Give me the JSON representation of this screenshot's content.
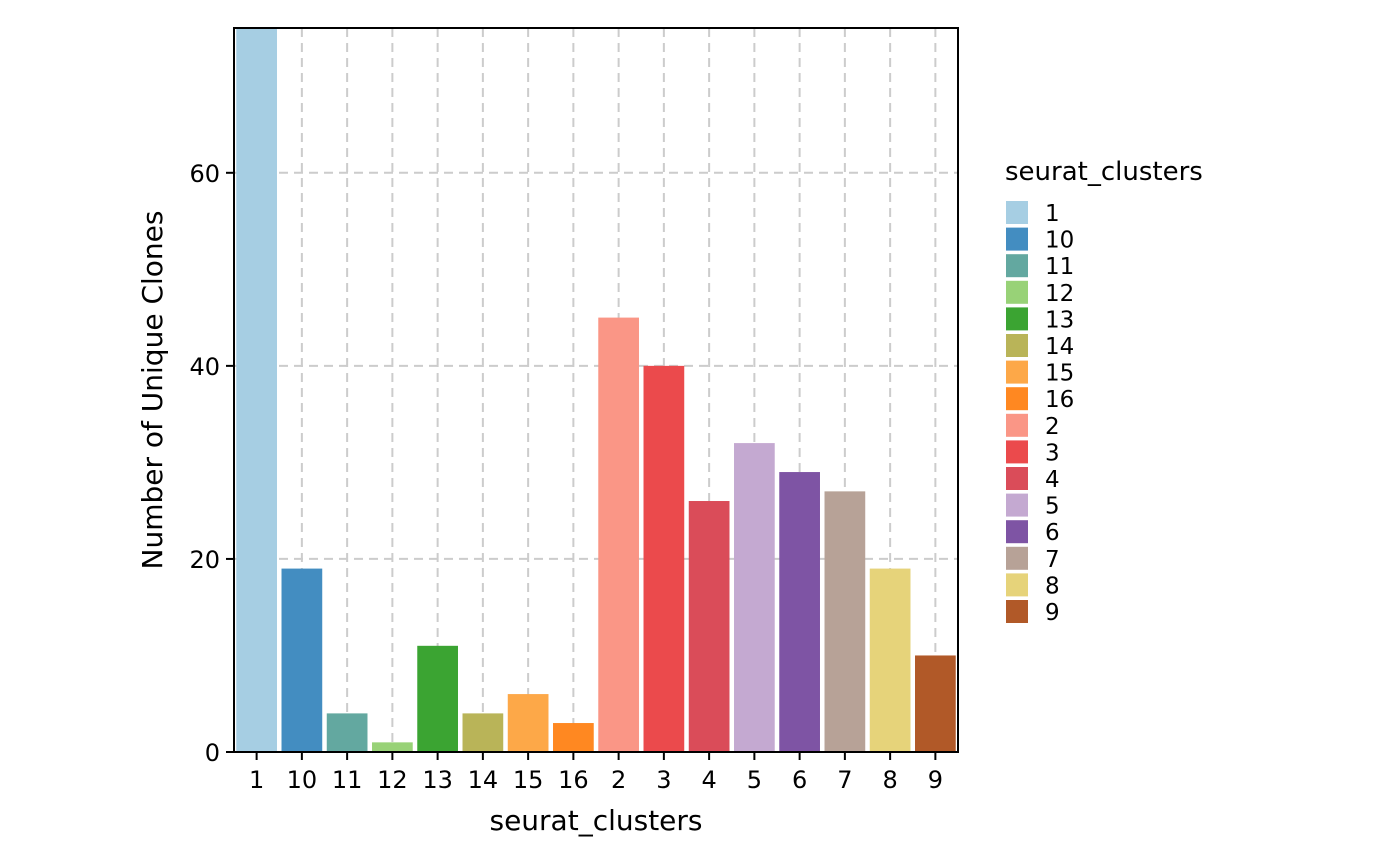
{
  "chart_data": {
    "type": "bar",
    "categories": [
      "1",
      "10",
      "11",
      "12",
      "13",
      "14",
      "15",
      "16",
      "2",
      "3",
      "4",
      "5",
      "6",
      "7",
      "8",
      "9"
    ],
    "values": [
      75,
      19,
      4,
      1,
      11,
      4,
      6,
      3,
      45,
      40,
      26,
      32,
      29,
      27,
      19,
      10
    ],
    "colors": [
      "#A6CEE3",
      "#438DC1",
      "#63A8A0",
      "#98D277",
      "#3BA432",
      "#B9B458",
      "#FDA848",
      "#FF8821",
      "#FA9686",
      "#EB4A4C",
      "#DA4C59",
      "#C4A9D1",
      "#7E54A4",
      "#B7A297",
      "#E6D37A",
      "#B15928"
    ],
    "xlabel": "seurat_clusters",
    "ylabel": "Number of Unique Clones",
    "ylim": [
      0,
      75
    ],
    "yticks": [
      0,
      20,
      40,
      60
    ],
    "grid": true,
    "legend": {
      "title": "seurat_clusters",
      "position": "right",
      "entries": [
        "1",
        "10",
        "11",
        "12",
        "13",
        "14",
        "15",
        "16",
        "2",
        "3",
        "4",
        "5",
        "6",
        "7",
        "8",
        "9"
      ]
    }
  }
}
